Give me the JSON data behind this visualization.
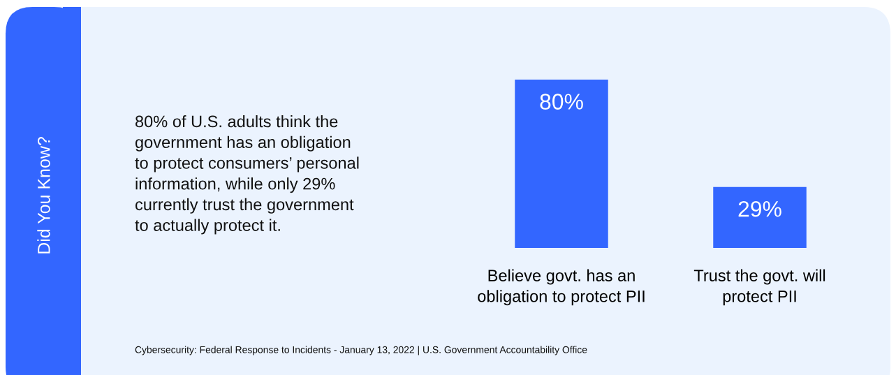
{
  "chart_data": {
    "type": "bar",
    "title": "Did You Know?",
    "subtitle": "80% of U.S. adults think the\ngovernment has an obligation\nto protect consumers’ personal\ninformation, while only 29%\ncurrently trust the government\nto actually protect it.",
    "categories": [
      "Believe govt. has an\nobligation to protect PII",
      "Trust the govt. will\nprotect PII"
    ],
    "values": [
      80,
      29
    ],
    "value_labels": [
      "80%",
      "29%"
    ],
    "color": "#3366ff",
    "tick_labels": "x",
    "annotations": [
      "Cybersecurity: Federal Response to Incidents - January 13, 2022 | U.S. Government Accountability Office"
    ]
  }
}
